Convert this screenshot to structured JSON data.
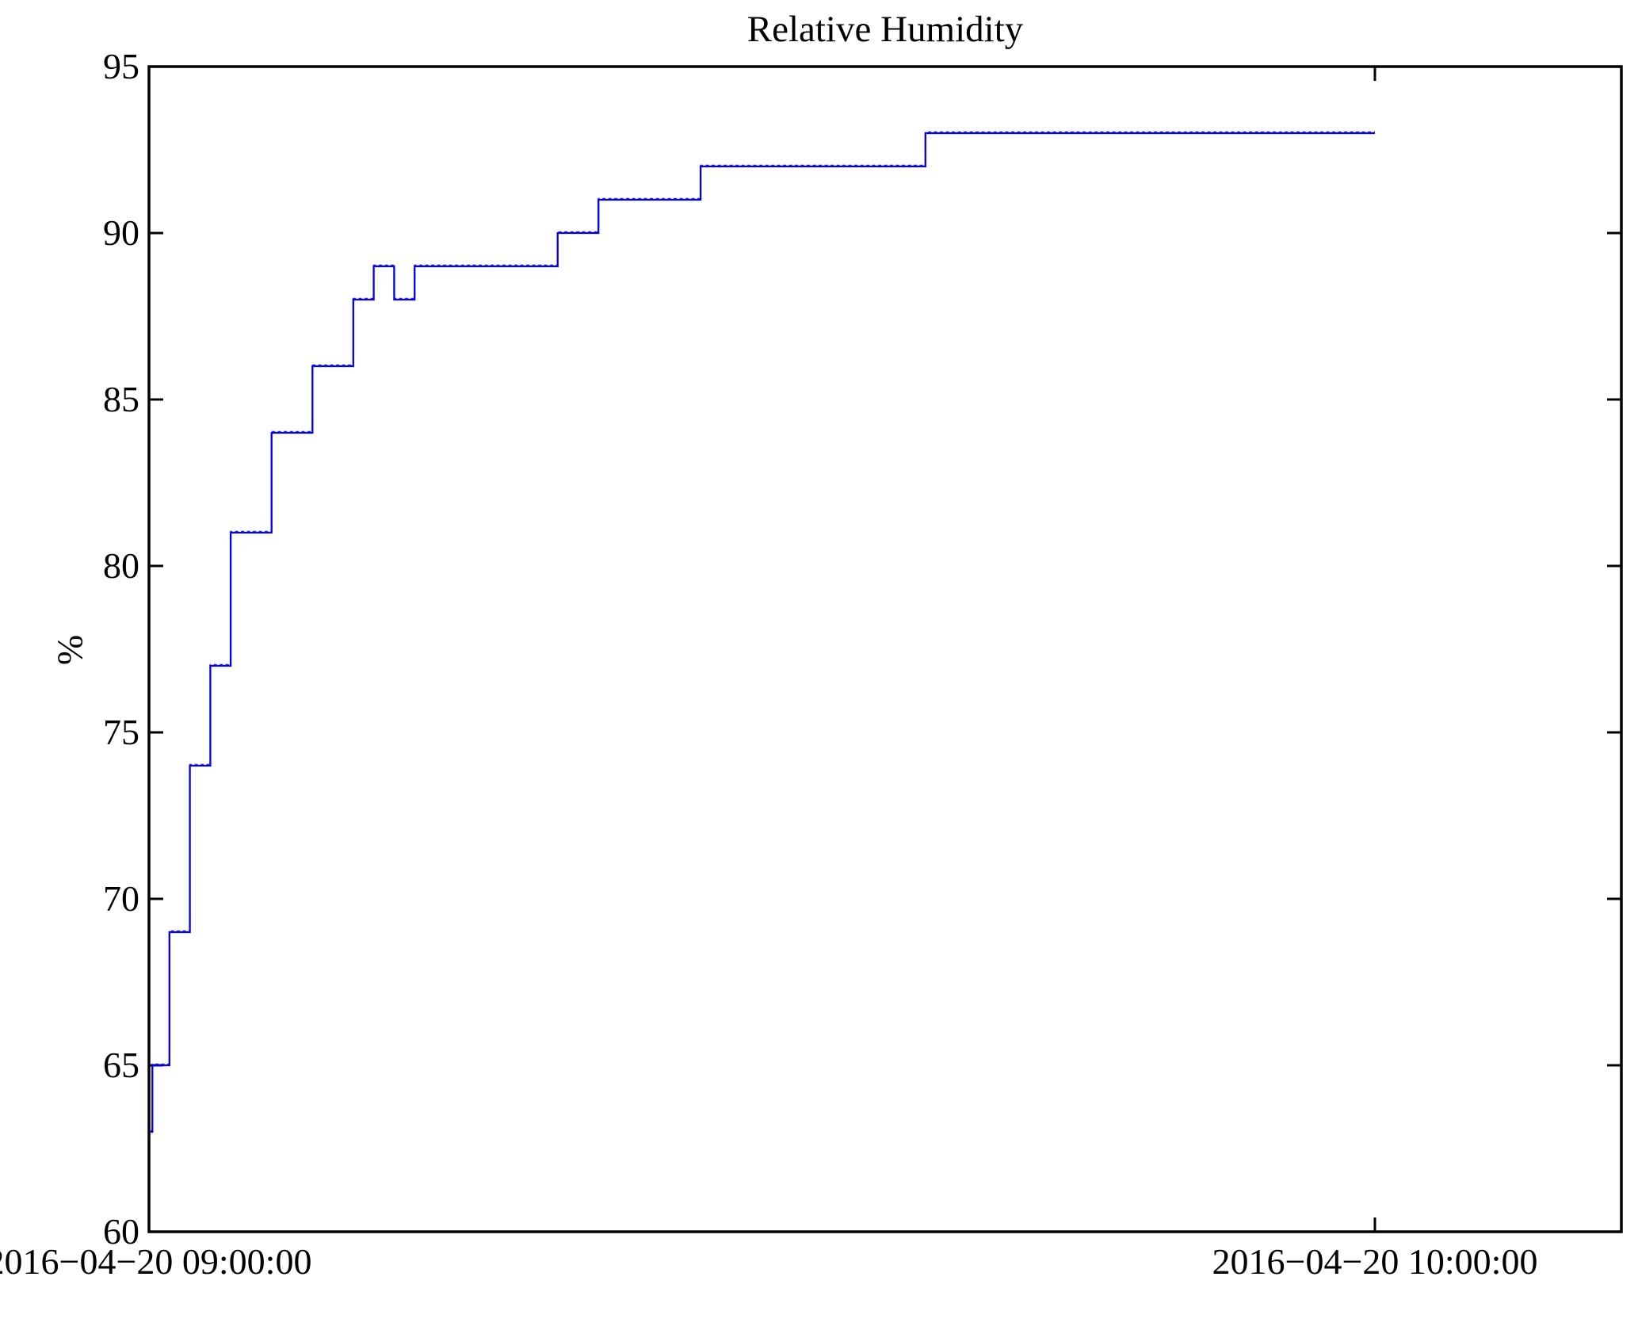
{
  "title": "Relative Humidity",
  "chart_data": {
    "type": "line",
    "title": "Relative Humidity",
    "xlabel": "",
    "ylabel": "%",
    "grid": false,
    "legend": null,
    "background": "#ffffff",
    "frame_color": "#000000",
    "line_color": "#0000ee",
    "x_axis": {
      "tick_labels": [
        "2016−04−20 09:00:00",
        "2016−04−20 10:00:00"
      ],
      "tick_times": [
        "09:00:00",
        "10:00:00"
      ],
      "tick_seconds": [
        0,
        3600
      ],
      "range_seconds": [
        0,
        4323
      ]
    },
    "y_axis": {
      "label": "%",
      "ticks": [
        60,
        65,
        70,
        75,
        80,
        85,
        90,
        95
      ],
      "range": [
        60,
        95
      ]
    },
    "series": [
      {
        "name": "Relative Humidity",
        "step": "post",
        "unit": "%",
        "points": [
          {
            "t": "09:00:05",
            "v": 63
          },
          {
            "t": "09:00:10",
            "v": 65
          },
          {
            "t": "09:01:00",
            "v": 69
          },
          {
            "t": "09:02:00",
            "v": 74
          },
          {
            "t": "09:03:00",
            "v": 77
          },
          {
            "t": "09:04:00",
            "v": 81
          },
          {
            "t": "09:06:00",
            "v": 84
          },
          {
            "t": "09:08:00",
            "v": 86
          },
          {
            "t": "09:10:00",
            "v": 88
          },
          {
            "t": "09:11:00",
            "v": 89
          },
          {
            "t": "09:12:00",
            "v": 88
          },
          {
            "t": "09:13:00",
            "v": 89
          },
          {
            "t": "09:20:00",
            "v": 90
          },
          {
            "t": "09:22:00",
            "v": 91
          },
          {
            "t": "09:27:00",
            "v": 92
          },
          {
            "t": "09:38:00",
            "v": 93
          }
        ],
        "end_time": "10:00:00",
        "end_value": 93
      }
    ]
  }
}
